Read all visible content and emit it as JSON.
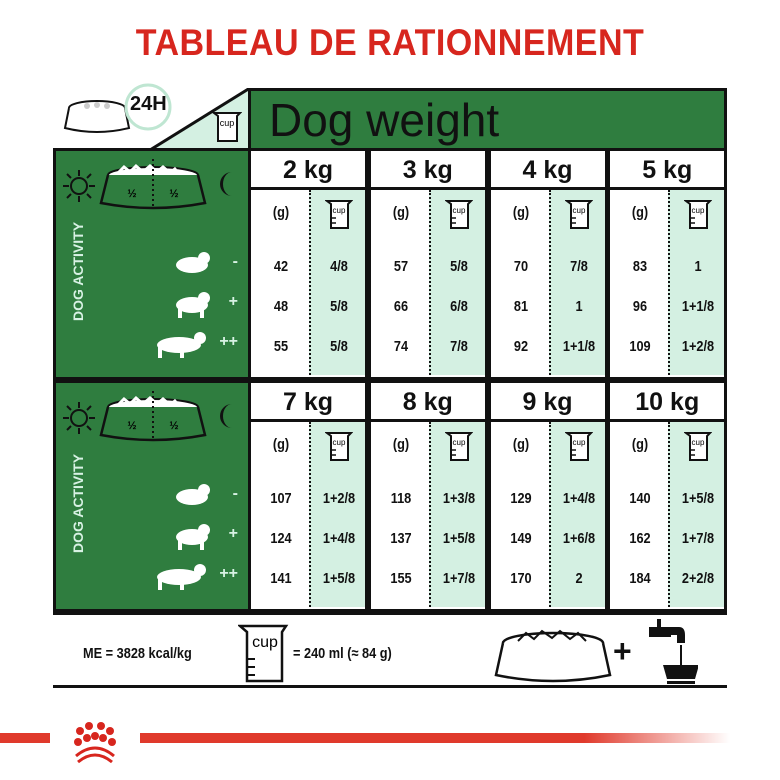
{
  "title": "TABLEAU DE RATIONNEMENT",
  "header": {
    "label_24h": "24H",
    "dog_weight": "Dog weight",
    "cup_label": "cup"
  },
  "panel": {
    "activity_label": "DOG ACTIVITY",
    "half": "½",
    "levels": [
      "-",
      "+",
      "++"
    ]
  },
  "units": {
    "grams": "(g)",
    "cup": "cup"
  },
  "blocks": [
    {
      "weights": [
        {
          "kg": "2 kg",
          "g": [
            "42",
            "48",
            "55"
          ],
          "cups": [
            "4/8",
            "5/8",
            "5/8"
          ]
        },
        {
          "kg": "3 kg",
          "g": [
            "57",
            "66",
            "74"
          ],
          "cups": [
            "5/8",
            "6/8",
            "7/8"
          ]
        },
        {
          "kg": "4 kg",
          "g": [
            "70",
            "81",
            "92"
          ],
          "cups": [
            "7/8",
            "1",
            "1+1/8"
          ]
        },
        {
          "kg": "5 kg",
          "g": [
            "83",
            "96",
            "109"
          ],
          "cups": [
            "1",
            "1+1/8",
            "1+2/8"
          ]
        }
      ]
    },
    {
      "weights": [
        {
          "kg": "7 kg",
          "g": [
            "107",
            "124",
            "141"
          ],
          "cups": [
            "1+2/8",
            "1+4/8",
            "1+5/8"
          ]
        },
        {
          "kg": "8 kg",
          "g": [
            "118",
            "137",
            "155"
          ],
          "cups": [
            "1+3/8",
            "1+5/8",
            "1+7/8"
          ]
        },
        {
          "kg": "9 kg",
          "g": [
            "129",
            "149",
            "170"
          ],
          "cups": [
            "1+4/8",
            "1+6/8",
            "2"
          ]
        },
        {
          "kg": "10 kg",
          "g": [
            "140",
            "162",
            "184"
          ],
          "cups": [
            "1+5/8",
            "1+7/8",
            "2+2/8"
          ]
        }
      ]
    }
  ],
  "footer": {
    "me": "ME = 3828 kcal/kg",
    "cup_eq": "= 240 ml (≈ 84 g)",
    "cup_label": "cup",
    "plus": "+"
  },
  "colors": {
    "title_red": "#d7261e",
    "green": "#2f7d3f",
    "mint": "#d4f0e2"
  }
}
